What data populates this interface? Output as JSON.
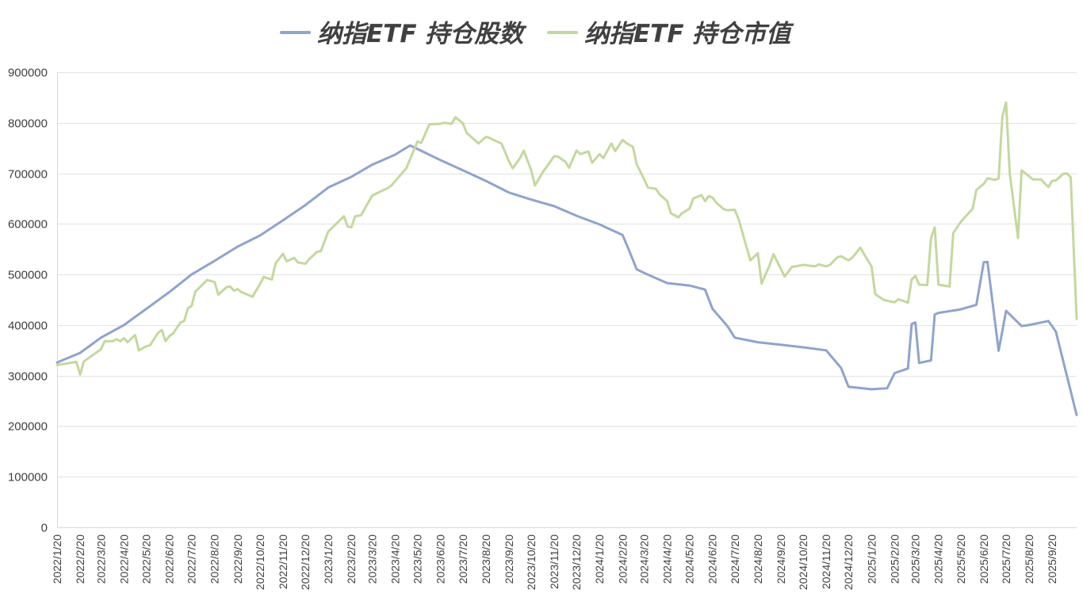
{
  "chart_data": {
    "type": "line",
    "title": "",
    "xlabel": "",
    "ylabel": "",
    "ylim": [
      0,
      900000
    ],
    "yticks": [
      "0",
      "100000",
      "200000",
      "300000",
      "400000",
      "500000",
      "600000",
      "700000",
      "800000",
      "900000"
    ],
    "grid": true,
    "legend_position": "top",
    "x_tick_labels": [
      "2022/1/20",
      "2022/2/20",
      "2022/3/20",
      "2022/4/20",
      "2022/5/20",
      "2022/6/20",
      "2022/7/20",
      "2022/8/20",
      "2022/9/20",
      "2022/10/20",
      "2022/11/20",
      "2022/12/20",
      "2023/1/20",
      "2023/2/20",
      "2023/3/20",
      "2023/4/20",
      "2023/5/20",
      "2023/6/20",
      "2023/7/20",
      "2023/8/20",
      "2023/9/20",
      "2023/10/20",
      "2023/11/20",
      "2023/12/20",
      "2024/1/20",
      "2024/2/20",
      "2024/3/20",
      "2024/4/20",
      "2024/5/20",
      "2024/6/20",
      "2024/7/20",
      "2024/8/20",
      "2024/9/20",
      "2024/10/20",
      "2024/11/20",
      "2024/12/20",
      "2025/1/20",
      "2025/2/20",
      "2025/3/20",
      "2025/4/20",
      "2025/5/20",
      "2025/6/20",
      "2025/7/20",
      "2025/8/20",
      "2025/9/20"
    ],
    "x_end": "2025/10/23",
    "series": [
      {
        "name": "纳指ETF 持仓股数",
        "color": "#8fa4cc",
        "points": [
          [
            "2022/1/20",
            326000
          ],
          [
            "2022/2/20",
            345000
          ],
          [
            "2022/3/20",
            375000
          ],
          [
            "2022/4/20",
            400000
          ],
          [
            "2022/5/20",
            432000
          ],
          [
            "2022/6/20",
            465000
          ],
          [
            "2022/7/20",
            500000
          ],
          [
            "2022/8/20",
            527000
          ],
          [
            "2022/9/20",
            555000
          ],
          [
            "2022/10/20",
            577000
          ],
          [
            "2022/11/20",
            607000
          ],
          [
            "2022/12/20",
            637000
          ],
          [
            "2023/1/20",
            672000
          ],
          [
            "2023/2/20",
            693000
          ],
          [
            "2023/3/20",
            717000
          ],
          [
            "2023/4/20",
            737000
          ],
          [
            "2023/5/10",
            755000
          ],
          [
            "2023/5/20",
            748000
          ],
          [
            "2023/6/20",
            726000
          ],
          [
            "2023/7/20",
            706000
          ],
          [
            "2023/8/20",
            685000
          ],
          [
            "2023/9/20",
            662000
          ],
          [
            "2023/10/20",
            648000
          ],
          [
            "2023/11/20",
            635000
          ],
          [
            "2023/12/20",
            616000
          ],
          [
            "2024/1/20",
            599000
          ],
          [
            "2024/2/20",
            578000
          ],
          [
            "2024/2/28",
            550000
          ],
          [
            "2024/3/10",
            510000
          ],
          [
            "2024/3/20",
            503000
          ],
          [
            "2024/4/20",
            483000
          ],
          [
            "2024/5/20",
            478000
          ],
          [
            "2024/6/10",
            470000
          ],
          [
            "2024/6/20",
            432000
          ],
          [
            "2024/7/10",
            398000
          ],
          [
            "2024/7/20",
            375000
          ],
          [
            "2024/8/20",
            366000
          ],
          [
            "2024/9/20",
            361000
          ],
          [
            "2024/10/20",
            356000
          ],
          [
            "2024/11/20",
            350000
          ],
          [
            "2024/12/10",
            315000
          ],
          [
            "2024/12/20",
            278000
          ],
          [
            "2025/1/20",
            273000
          ],
          [
            "2025/2/10",
            275000
          ],
          [
            "2025/2/20",
            305000
          ],
          [
            "2025/3/10",
            314000
          ],
          [
            "2025/3/15",
            402000
          ],
          [
            "2025/3/20",
            405000
          ],
          [
            "2025/3/25",
            325000
          ],
          [
            "2025/4/10",
            330000
          ],
          [
            "2025/4/15",
            421000
          ],
          [
            "2025/4/20",
            424000
          ],
          [
            "2025/5/20",
            431000
          ],
          [
            "2025/6/10",
            440000
          ],
          [
            "2025/6/20",
            524000
          ],
          [
            "2025/6/25",
            525000
          ],
          [
            "2025/7/10",
            349000
          ],
          [
            "2025/7/20",
            428000
          ],
          [
            "2025/8/5",
            405000
          ],
          [
            "2025/8/10",
            398000
          ],
          [
            "2025/8/20",
            400000
          ],
          [
            "2025/9/15",
            408000
          ],
          [
            "2025/9/25",
            387000
          ],
          [
            "2025/10/23",
            222000
          ]
        ]
      },
      {
        "name": "纳指ETF 持仓市值",
        "color": "#c4d89e",
        "points": [
          [
            "2022/1/20",
            321000
          ],
          [
            "2022/2/15",
            327000
          ],
          [
            "2022/2/20",
            302000
          ],
          [
            "2022/2/25",
            328000
          ],
          [
            "2022/3/20",
            352000
          ],
          [
            "2022/3/25",
            368000
          ],
          [
            "2022/4/5",
            368000
          ],
          [
            "2022/4/10",
            372000
          ],
          [
            "2022/4/15",
            368000
          ],
          [
            "2022/4/20",
            374000
          ],
          [
            "2022/4/25",
            366000
          ],
          [
            "2022/5/5",
            380000
          ],
          [
            "2022/5/10",
            350000
          ],
          [
            "2022/5/20",
            358000
          ],
          [
            "2022/5/25",
            360000
          ],
          [
            "2022/6/5",
            385000
          ],
          [
            "2022/6/10",
            390000
          ],
          [
            "2022/6/15",
            368000
          ],
          [
            "2022/6/20",
            378000
          ],
          [
            "2022/6/25",
            383000
          ],
          [
            "2022/7/5",
            405000
          ],
          [
            "2022/7/10",
            408000
          ],
          [
            "2022/7/15",
            433000
          ],
          [
            "2022/7/20",
            438000
          ],
          [
            "2022/7/25",
            466000
          ],
          [
            "2022/8/10",
            489000
          ],
          [
            "2022/8/20",
            485000
          ],
          [
            "2022/8/25",
            460000
          ],
          [
            "2022/9/5",
            475000
          ],
          [
            "2022/9/10",
            476000
          ],
          [
            "2022/9/15",
            468000
          ],
          [
            "2022/9/20",
            471000
          ],
          [
            "2022/9/25",
            465000
          ],
          [
            "2022/10/10",
            456000
          ],
          [
            "2022/10/20",
            481000
          ],
          [
            "2022/10/25",
            495000
          ],
          [
            "2022/11/5",
            490000
          ],
          [
            "2022/11/10",
            522000
          ],
          [
            "2022/11/20",
            541000
          ],
          [
            "2022/11/25",
            526000
          ],
          [
            "2022/12/5",
            533000
          ],
          [
            "2022/12/10",
            524000
          ],
          [
            "2022/12/20",
            521000
          ],
          [
            "2022/12/25",
            530000
          ],
          [
            "2023/1/5",
            545000
          ],
          [
            "2023/1/10",
            546000
          ],
          [
            "2023/1/20",
            585000
          ],
          [
            "2023/2/10",
            615000
          ],
          [
            "2023/2/15",
            595000
          ],
          [
            "2023/2/20",
            593000
          ],
          [
            "2023/2/25",
            615000
          ],
          [
            "2023/3/5",
            617000
          ],
          [
            "2023/3/20",
            656000
          ],
          [
            "2023/4/10",
            671000
          ],
          [
            "2023/4/15",
            676000
          ],
          [
            "2023/5/5",
            710000
          ],
          [
            "2023/5/20",
            763000
          ],
          [
            "2023/5/25",
            760000
          ],
          [
            "2023/6/5",
            797000
          ],
          [
            "2023/6/20",
            798000
          ],
          [
            "2023/6/25",
            800000
          ],
          [
            "2023/7/5",
            798000
          ],
          [
            "2023/7/10",
            811000
          ],
          [
            "2023/7/20",
            799000
          ],
          [
            "2023/7/25",
            780000
          ],
          [
            "2023/8/10",
            759000
          ],
          [
            "2023/8/20",
            772000
          ],
          [
            "2023/8/25",
            770000
          ],
          [
            "2023/9/5",
            762000
          ],
          [
            "2023/9/10",
            759000
          ],
          [
            "2023/9/20",
            724000
          ],
          [
            "2023/9/25",
            710000
          ],
          [
            "2023/10/5",
            730000
          ],
          [
            "2023/10/10",
            745000
          ],
          [
            "2023/10/20",
            706000
          ],
          [
            "2023/10/25",
            676000
          ],
          [
            "2023/11/5",
            703000
          ],
          [
            "2023/11/20",
            734000
          ],
          [
            "2023/11/25",
            733000
          ],
          [
            "2023/12/5",
            723000
          ],
          [
            "2023/12/10",
            711000
          ],
          [
            "2023/12/20",
            745000
          ],
          [
            "2023/12/25",
            738000
          ],
          [
            "2024/1/5",
            743000
          ],
          [
            "2024/1/10",
            721000
          ],
          [
            "2024/1/20",
            738000
          ],
          [
            "2024/1/25",
            730000
          ],
          [
            "2024/2/5",
            759000
          ],
          [
            "2024/2/10",
            744000
          ],
          [
            "2024/2/20",
            766000
          ],
          [
            "2024/2/25",
            760000
          ],
          [
            "2024/3/5",
            752000
          ],
          [
            "2024/3/10",
            718000
          ],
          [
            "2024/3/20",
            688000
          ],
          [
            "2024/3/25",
            672000
          ],
          [
            "2024/4/5",
            669000
          ],
          [
            "2024/4/10",
            658000
          ],
          [
            "2024/4/20",
            645000
          ],
          [
            "2024/4/25",
            621000
          ],
          [
            "2024/5/5",
            613000
          ],
          [
            "2024/5/10",
            621000
          ],
          [
            "2024/5/20",
            630000
          ],
          [
            "2024/5/25",
            650000
          ],
          [
            "2024/6/5",
            657000
          ],
          [
            "2024/6/10",
            645000
          ],
          [
            "2024/6/15",
            655000
          ],
          [
            "2024/6/20",
            652000
          ],
          [
            "2024/6/25",
            642000
          ],
          [
            "2024/7/5",
            629000
          ],
          [
            "2024/7/10",
            627000
          ],
          [
            "2024/7/20",
            628000
          ],
          [
            "2024/7/25",
            610000
          ],
          [
            "2024/8/5",
            553000
          ],
          [
            "2024/8/10",
            528000
          ],
          [
            "2024/8/20",
            542000
          ],
          [
            "2024/8/25",
            482000
          ],
          [
            "2024/9/5",
            519000
          ],
          [
            "2024/9/10",
            540000
          ],
          [
            "2024/9/20",
            511000
          ],
          [
            "2024/9/25",
            496000
          ],
          [
            "2024/10/5",
            515000
          ],
          [
            "2024/10/10",
            516000
          ],
          [
            "2024/10/20",
            519000
          ],
          [
            "2024/10/25",
            518000
          ],
          [
            "2024/11/5",
            516000
          ],
          [
            "2024/11/10",
            520000
          ],
          [
            "2024/11/20",
            516000
          ],
          [
            "2024/11/25",
            519000
          ],
          [
            "2024/12/5",
            534000
          ],
          [
            "2024/12/10",
            536000
          ],
          [
            "2024/12/20",
            528000
          ],
          [
            "2024/12/25",
            533000
          ],
          [
            "2025/1/5",
            553000
          ],
          [
            "2025/1/10",
            540000
          ],
          [
            "2025/1/20",
            516000
          ],
          [
            "2025/1/25",
            461000
          ],
          [
            "2025/2/5",
            450000
          ],
          [
            "2025/2/10",
            448000
          ],
          [
            "2025/2/20",
            445000
          ],
          [
            "2025/2/25",
            451000
          ],
          [
            "2025/3/5",
            447000
          ],
          [
            "2025/3/10",
            444000
          ],
          [
            "2025/3/15",
            490000
          ],
          [
            "2025/3/20",
            497000
          ],
          [
            "2025/3/25",
            480000
          ],
          [
            "2025/4/5",
            479000
          ],
          [
            "2025/4/10",
            572000
          ],
          [
            "2025/4/15",
            593000
          ],
          [
            "2025/4/20",
            480000
          ],
          [
            "2025/5/5",
            476000
          ],
          [
            "2025/5/10",
            582000
          ],
          [
            "2025/5/20",
            604000
          ],
          [
            "2025/6/5",
            630000
          ],
          [
            "2025/6/10",
            667000
          ],
          [
            "2025/6/20",
            679000
          ],
          [
            "2025/6/25",
            690000
          ],
          [
            "2025/7/5",
            687000
          ],
          [
            "2025/7/10",
            690000
          ],
          [
            "2025/7/15",
            812000
          ],
          [
            "2025/7/20",
            840000
          ],
          [
            "2025/7/25",
            700000
          ],
          [
            "2025/8/5",
            572000
          ],
          [
            "2025/8/10",
            706000
          ],
          [
            "2025/8/20",
            694000
          ],
          [
            "2025/8/25",
            688000
          ],
          [
            "2025/9/5",
            688000
          ],
          [
            "2025/9/10",
            680000
          ],
          [
            "2025/9/15",
            673000
          ],
          [
            "2025/9/20",
            685000
          ],
          [
            "2025/9/25",
            686000
          ],
          [
            "2025/10/5",
            699000
          ],
          [
            "2025/10/10",
            700000
          ],
          [
            "2025/10/15",
            692000
          ],
          [
            "2025/10/23",
            412000
          ]
        ]
      }
    ]
  }
}
